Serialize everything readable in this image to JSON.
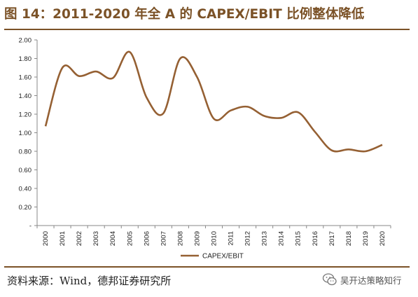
{
  "figure_title": "图 14：2011-2020 年全 A 的 CAPEX/EBIT 比例整体降低",
  "source_note": "资料来源：Wind，德邦证券研究所",
  "watermark": {
    "text": "吴开达策略知行",
    "icon": "wechat-icon"
  },
  "colors": {
    "accent": "#7b5227",
    "series": "#956033",
    "axis": "#888888"
  },
  "chart_data": {
    "type": "line",
    "x": [
      "2000",
      "2001",
      "2002",
      "2003",
      "2004",
      "2005",
      "2006",
      "2007",
      "2008",
      "2009",
      "2010",
      "2011",
      "2012",
      "2013",
      "2014",
      "2015",
      "2016",
      "2017",
      "2018",
      "2019",
      "2020"
    ],
    "series": [
      {
        "name": "CAPEX/EBIT",
        "values": [
          1.07,
          1.7,
          1.61,
          1.66,
          1.59,
          1.87,
          1.38,
          1.21,
          1.8,
          1.6,
          1.15,
          1.24,
          1.28,
          1.18,
          1.16,
          1.22,
          1.01,
          0.81,
          0.82,
          0.8,
          0.87
        ]
      }
    ],
    "y_ticks": [
      "2.00",
      "1.80",
      "1.60",
      "1.40",
      "1.20",
      "1.00",
      "0.80",
      "0.60",
      "0.40",
      "0.20",
      "-"
    ],
    "ylim": [
      0,
      2.0
    ],
    "grid": false,
    "legend_position": "bottom-center",
    "smooth": true
  }
}
